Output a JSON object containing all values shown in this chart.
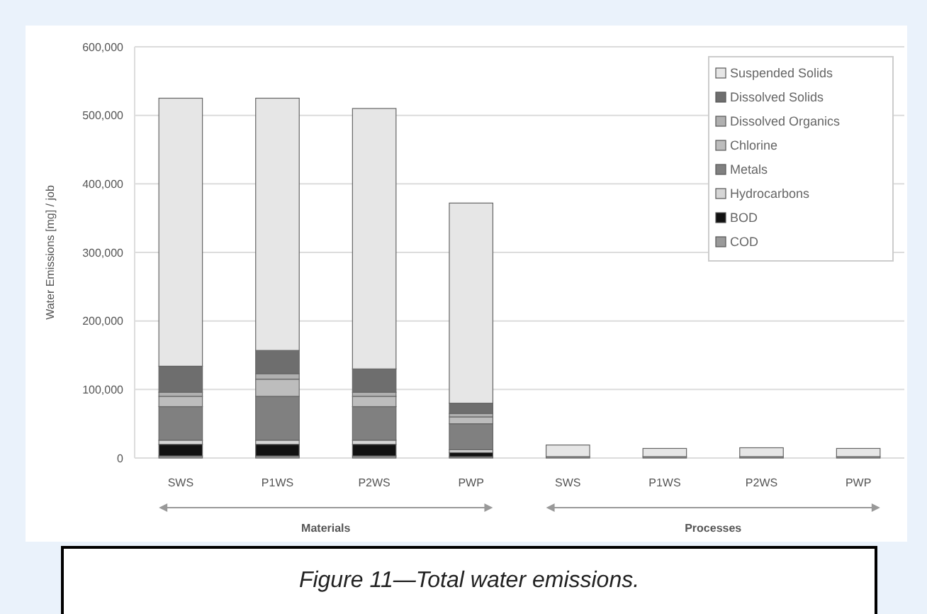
{
  "chart_data": {
    "type": "bar",
    "stacked": true,
    "ylabel": "Water Emissions [mg] / job",
    "categories": [
      "SWS",
      "P1WS",
      "P2WS",
      "PWP",
      "SWS",
      "P1WS",
      "P2WS",
      "PWP"
    ],
    "series": [
      {
        "name": "COD",
        "color": "#9a9a9a",
        "values": [
          3000,
          3000,
          3000,
          2000,
          2000,
          2000,
          2000,
          2000
        ]
      },
      {
        "name": "BOD",
        "color": "#111111",
        "values": [
          17000,
          17000,
          17000,
          6000,
          0,
          0,
          0,
          0
        ]
      },
      {
        "name": "Hydrocarbons",
        "color": "#d6d6d6",
        "values": [
          6000,
          6000,
          6000,
          4000,
          0,
          0,
          0,
          0
        ]
      },
      {
        "name": "Metals",
        "color": "#808080",
        "values": [
          49000,
          64000,
          49000,
          38000,
          0,
          0,
          0,
          0
        ]
      },
      {
        "name": "Chlorine",
        "color": "#bdbdbd",
        "values": [
          15000,
          25000,
          15000,
          10000,
          0,
          0,
          0,
          0
        ]
      },
      {
        "name": "Dissolved Organics",
        "color": "#b0b0b0",
        "values": [
          6000,
          8000,
          6000,
          5000,
          0,
          0,
          0,
          0
        ]
      },
      {
        "name": "Dissolved Solids",
        "color": "#6e6e6e",
        "values": [
          38000,
          34000,
          34000,
          15000,
          0,
          0,
          0,
          0
        ]
      },
      {
        "name": "Suspended Solids",
        "color": "#e6e6e6",
        "values": [
          391000,
          368000,
          380000,
          292000,
          17000,
          12000,
          13000,
          12000
        ]
      }
    ],
    "ylim": [
      0,
      600000
    ],
    "yticks": [
      {
        "value": 0,
        "label": "0"
      },
      {
        "value": 100000,
        "label": "100,000"
      },
      {
        "value": 200000,
        "label": "200,000"
      },
      {
        "value": 300000,
        "label": "300,000"
      },
      {
        "value": 400000,
        "label": "400,000"
      },
      {
        "value": 500000,
        "label": "500,000"
      },
      {
        "value": 600000,
        "label": "600,000"
      }
    ],
    "grid": "y",
    "legend": "top right",
    "annotations": [
      "Materials",
      "Processes",
      "Figure 11—Total water emissions."
    ]
  }
}
